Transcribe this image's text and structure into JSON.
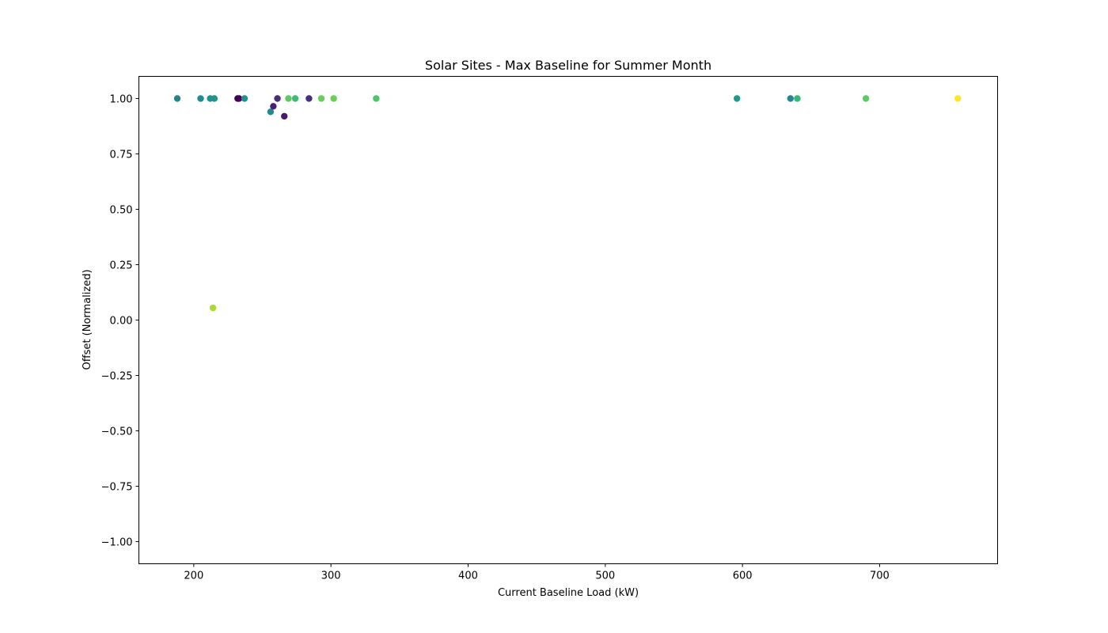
{
  "chart_data": {
    "type": "scatter",
    "title": "Solar Sites - Max Baseline for Summer Month",
    "xlabel": "Current Baseline Load (kW)",
    "ylabel": "Offset (Normalized)",
    "xlim": [
      160,
      786
    ],
    "ylim": [
      -1.1,
      1.1
    ],
    "xticks": [
      200,
      300,
      400,
      500,
      600,
      700
    ],
    "xtick_labels": [
      "200",
      "300",
      "400",
      "500",
      "600",
      "700"
    ],
    "yticks": [
      1.0,
      0.75,
      0.5,
      0.25,
      0.0,
      -0.25,
      -0.5,
      -0.75,
      -1.0
    ],
    "ytick_labels": [
      "1.00",
      "0.75",
      "0.50",
      "0.25",
      "0.00",
      "−0.25",
      "−0.50",
      "−0.75",
      "−1.00"
    ],
    "grid": false,
    "points": [
      {
        "x": 188,
        "y": 1.0,
        "color": "#26818e"
      },
      {
        "x": 205,
        "y": 1.0,
        "color": "#228c8d"
      },
      {
        "x": 212,
        "y": 1.0,
        "color": "#20928c"
      },
      {
        "x": 215,
        "y": 1.0,
        "color": "#1f958b"
      },
      {
        "x": 214,
        "y": 0.055,
        "color": "#a8db34"
      },
      {
        "x": 232,
        "y": 1.0,
        "color": "#440154"
      },
      {
        "x": 233,
        "y": 1.0,
        "color": "#440154"
      },
      {
        "x": 237,
        "y": 1.0,
        "color": "#21918c"
      },
      {
        "x": 256,
        "y": 0.94,
        "color": "#24878e"
      },
      {
        "x": 258,
        "y": 0.965,
        "color": "#482173"
      },
      {
        "x": 261,
        "y": 1.0,
        "color": "#472d7b"
      },
      {
        "x": 266,
        "y": 0.92,
        "color": "#481a6c"
      },
      {
        "x": 269,
        "y": 1.0,
        "color": "#5ec962"
      },
      {
        "x": 274,
        "y": 1.0,
        "color": "#3bbb75"
      },
      {
        "x": 284,
        "y": 1.0,
        "color": "#472d7b"
      },
      {
        "x": 293,
        "y": 1.0,
        "color": "#6ccd5a"
      },
      {
        "x": 302,
        "y": 1.0,
        "color": "#6ccd5a"
      },
      {
        "x": 333,
        "y": 1.0,
        "color": "#50c46a"
      },
      {
        "x": 596,
        "y": 1.0,
        "color": "#1f988b"
      },
      {
        "x": 635,
        "y": 1.0,
        "color": "#23898e"
      },
      {
        "x": 640,
        "y": 1.0,
        "color": "#35b779"
      },
      {
        "x": 690,
        "y": 1.0,
        "color": "#5ec962"
      },
      {
        "x": 757,
        "y": 1.0,
        "color": "#fde725"
      }
    ]
  }
}
